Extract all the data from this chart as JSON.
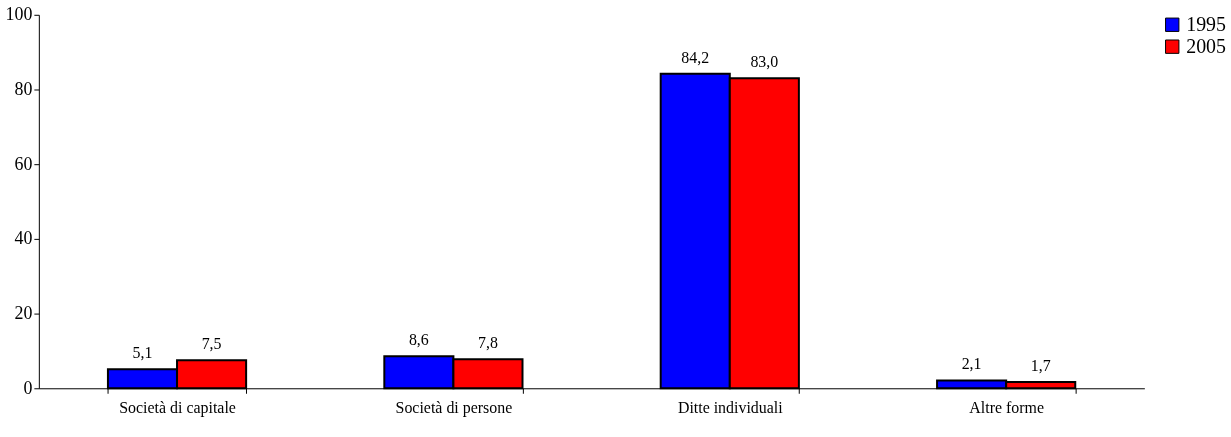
{
  "chart_data": {
    "type": "bar",
    "categories": [
      "Società di capitale",
      "Società di persone",
      "Ditte individuali",
      "Altre forme"
    ],
    "series": [
      {
        "name": "1995",
        "color": "#0000ff",
        "values": [
          5.1,
          8.6,
          84.2,
          2.1
        ],
        "value_labels": [
          "5,1",
          "8,6",
          "84,2",
          "2,1"
        ]
      },
      {
        "name": "2005",
        "color": "#ff0000",
        "values": [
          7.5,
          7.8,
          83.0,
          1.7
        ],
        "value_labels": [
          "7,5",
          "7,8",
          "83,0",
          "1,7"
        ]
      }
    ],
    "ylim": [
      0,
      100
    ],
    "yticks": [
      0,
      20,
      40,
      60,
      80,
      100
    ],
    "grid": false,
    "legend": "right"
  }
}
